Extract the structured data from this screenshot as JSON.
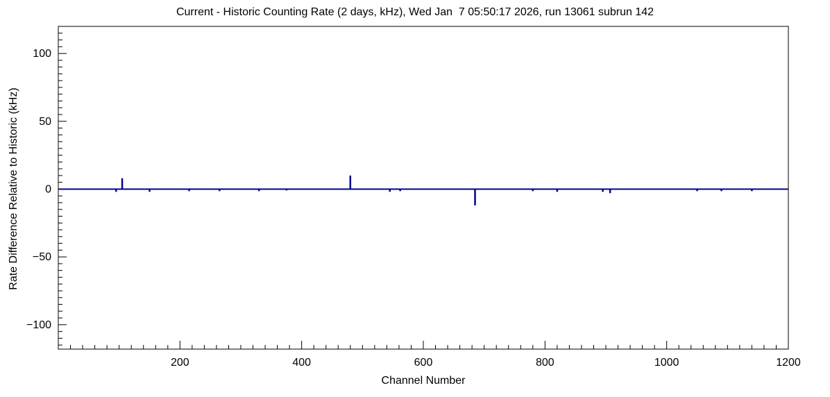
{
  "chart_data": {
    "type": "line",
    "title": "Current - Historic Counting Rate (2 days, kHz), Wed Jan  7 05:50:17 2026, run 13061 subrun 142",
    "xlabel": "Channel Number",
    "ylabel": "Rate Difference Relative to Historic (kHz)",
    "xlim": [
      0,
      1200
    ],
    "ylim": [
      -118,
      120
    ],
    "grid": false,
    "legend": "none",
    "line_color": "#00008b",
    "frame_color": "#000000",
    "baseline": 0,
    "x_minor_step": 20,
    "y_minor_step": 5,
    "x_ticks": [
      {
        "v": 200,
        "label": "200"
      },
      {
        "v": 400,
        "label": "400"
      },
      {
        "v": 600,
        "label": "600"
      },
      {
        "v": 800,
        "label": "800"
      },
      {
        "v": 1000,
        "label": "1000"
      },
      {
        "v": 1200,
        "label": "1200"
      }
    ],
    "y_ticks": [
      {
        "v": -100,
        "label": "−100"
      },
      {
        "v": -50,
        "label": "−50"
      },
      {
        "v": 0,
        "label": "0"
      },
      {
        "v": 50,
        "label": "50"
      },
      {
        "v": 100,
        "label": "100"
      }
    ],
    "spikes": [
      {
        "x": 95,
        "y": -2
      },
      {
        "x": 105,
        "y": 8
      },
      {
        "x": 150,
        "y": -2
      },
      {
        "x": 215,
        "y": -1.5
      },
      {
        "x": 265,
        "y": -1.5
      },
      {
        "x": 330,
        "y": -1.5
      },
      {
        "x": 375,
        "y": -1
      },
      {
        "x": 480,
        "y": 10
      },
      {
        "x": 545,
        "y": -2
      },
      {
        "x": 562,
        "y": -1.5
      },
      {
        "x": 685,
        "y": -12
      },
      {
        "x": 780,
        "y": -1.5
      },
      {
        "x": 820,
        "y": -2
      },
      {
        "x": 895,
        "y": -2
      },
      {
        "x": 907,
        "y": -3
      },
      {
        "x": 1050,
        "y": -1.5
      },
      {
        "x": 1090,
        "y": -1.5
      },
      {
        "x": 1140,
        "y": -1.5
      }
    ]
  }
}
